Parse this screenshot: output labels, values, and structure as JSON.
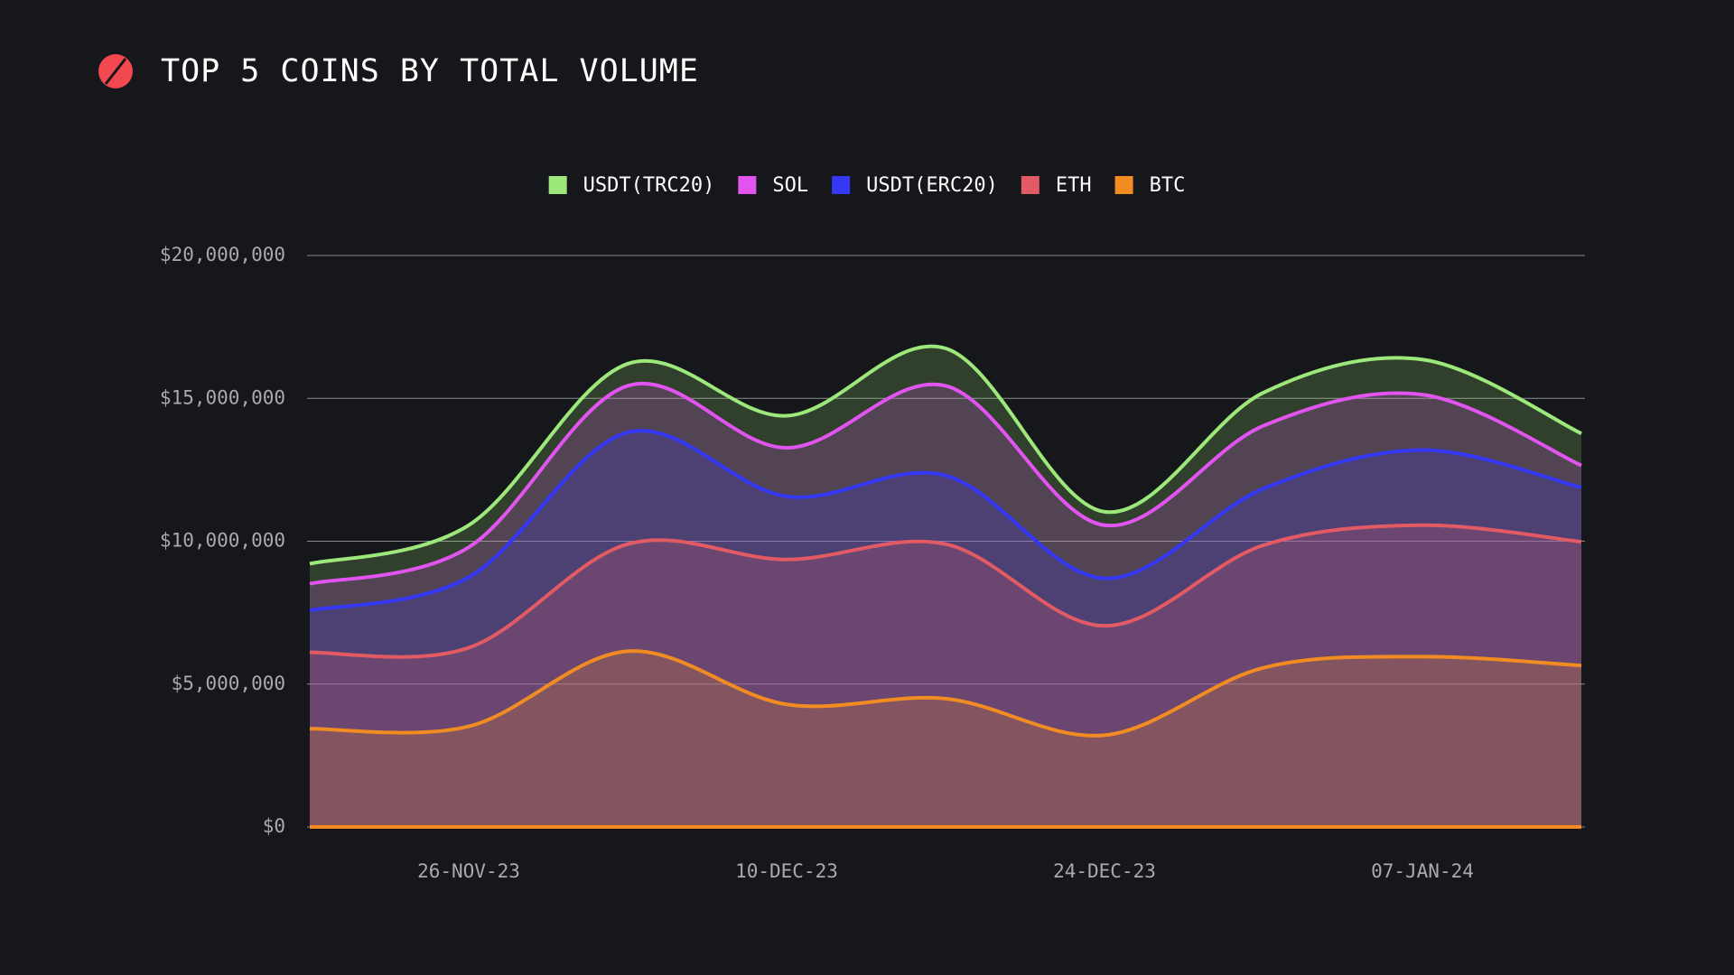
{
  "chart_data": {
    "type": "stacked-area",
    "title": "TOP 5 COINS BY TOTAL VOLUME",
    "categories": [
      null,
      "26-NOV-23",
      null,
      "10-DEC-23",
      null,
      "24-DEC-23",
      null,
      "07-JAN-24",
      null
    ],
    "series": [
      {
        "name": "USDT(TRC20)",
        "color": "#9de87a",
        "values": [
          700000,
          770000,
          770000,
          1120000,
          1310000,
          470000,
          1160000,
          1230000,
          1120000
        ]
      },
      {
        "name": "SOL",
        "color": "#e254ef",
        "values": [
          930000,
          1050000,
          1630000,
          1700000,
          3140000,
          1860000,
          2200000,
          1940000,
          770000
        ]
      },
      {
        "name": "USDT(ERC20)",
        "color": "#3538f5",
        "values": [
          1470000,
          2470000,
          3910000,
          2210000,
          2400000,
          1660000,
          1980000,
          2630000,
          1900000
        ]
      },
      {
        "name": "ETH",
        "color": "#e25a63",
        "values": [
          2670000,
          2750000,
          3750000,
          5070000,
          5410000,
          3830000,
          4290000,
          4600000,
          4330000
        ]
      },
      {
        "name": "BTC",
        "color": "#f08c22",
        "values": [
          3440000,
          3520000,
          6150000,
          4290000,
          4490000,
          3210000,
          5570000,
          5960000,
          5650000
        ]
      }
    ],
    "ylim": [
      0,
      20000000
    ],
    "yticks": [
      {
        "value": 0,
        "label": "$0"
      },
      {
        "value": 5000000,
        "label": "$5,000,000"
      },
      {
        "value": 10000000,
        "label": "$10,000,000"
      },
      {
        "value": 15000000,
        "label": "$15,000,000"
      },
      {
        "value": 20000000,
        "label": "$20,000,000"
      }
    ],
    "grid": true,
    "stacked": true,
    "legend": "top"
  }
}
